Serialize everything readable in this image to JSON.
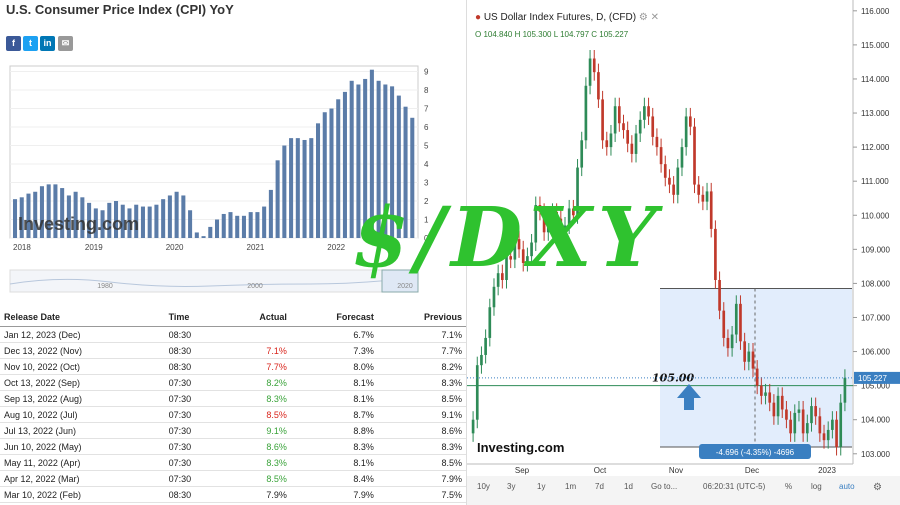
{
  "cpi": {
    "title": "U.S. Consumer Price Index (CPI) YoY",
    "share_icons": [
      "facebook-icon",
      "twitter-icon",
      "linkedin-icon",
      "email-icon"
    ],
    "logo": "Investing.com",
    "chart_data": {
      "type": "bar",
      "x_ticks": [
        "2018",
        "2019",
        "2020",
        "2021",
        "2022"
      ],
      "y_ticks": [
        "0",
        "1",
        "2",
        "3",
        "4",
        "5",
        "6",
        "7",
        "8",
        "9"
      ],
      "ylim": [
        0,
        9.3
      ],
      "values": [
        2.1,
        2.2,
        2.4,
        2.5,
        2.8,
        2.9,
        2.9,
        2.7,
        2.3,
        2.5,
        2.2,
        1.9,
        1.6,
        1.5,
        1.9,
        2.0,
        1.8,
        1.6,
        1.8,
        1.7,
        1.7,
        1.8,
        2.1,
        2.3,
        2.5,
        2.3,
        1.5,
        0.3,
        0.1,
        0.6,
        1.0,
        1.3,
        1.4,
        1.2,
        1.2,
        1.4,
        1.4,
        1.7,
        2.6,
        4.2,
        5.0,
        5.4,
        5.4,
        5.3,
        5.4,
        6.2,
        6.8,
        7.0,
        7.5,
        7.9,
        8.5,
        8.3,
        8.6,
        9.1,
        8.5,
        8.3,
        8.2,
        7.7,
        7.1,
        6.5
      ],
      "bar_color": "#5b7ca8",
      "navigator_labels": [
        "1980",
        "2000",
        "2020"
      ]
    }
  },
  "releases": {
    "headers": [
      "Release Date",
      "Time",
      "Actual",
      "Forecast",
      "Previous"
    ],
    "rows": [
      {
        "date": "Jan 12, 2023 (Dec)",
        "time": "08:30",
        "actual": "",
        "forecast": "6.7%",
        "previous": "7.1%",
        "color": ""
      },
      {
        "date": "Dec 13, 2022 (Nov)",
        "time": "08:30",
        "actual": "7.1%",
        "forecast": "7.3%",
        "previous": "7.7%",
        "color": "red"
      },
      {
        "date": "Nov 10, 2022 (Oct)",
        "time": "08:30",
        "actual": "7.7%",
        "forecast": "8.0%",
        "previous": "8.2%",
        "color": "red"
      },
      {
        "date": "Oct 13, 2022 (Sep)",
        "time": "07:30",
        "actual": "8.2%",
        "forecast": "8.1%",
        "previous": "8.3%",
        "color": "green"
      },
      {
        "date": "Sep 13, 2022 (Aug)",
        "time": "07:30",
        "actual": "8.3%",
        "forecast": "8.1%",
        "previous": "8.5%",
        "color": "green"
      },
      {
        "date": "Aug 10, 2022 (Jul)",
        "time": "07:30",
        "actual": "8.5%",
        "forecast": "8.7%",
        "previous": "9.1%",
        "color": "red"
      },
      {
        "date": "Jul 13, 2022 (Jun)",
        "time": "07:30",
        "actual": "9.1%",
        "forecast": "8.8%",
        "previous": "8.6%",
        "color": "green"
      },
      {
        "date": "Jun 10, 2022 (May)",
        "time": "07:30",
        "actual": "8.6%",
        "forecast": "8.3%",
        "previous": "8.3%",
        "color": "green"
      },
      {
        "date": "May 11, 2022 (Apr)",
        "time": "07:30",
        "actual": "8.3%",
        "forecast": "8.1%",
        "previous": "8.5%",
        "color": "green"
      },
      {
        "date": "Apr 12, 2022 (Mar)",
        "time": "07:30",
        "actual": "8.5%",
        "forecast": "8.4%",
        "previous": "7.9%",
        "color": "green"
      },
      {
        "date": "Mar 10, 2022 (Feb)",
        "time": "08:30",
        "actual": "7.9%",
        "forecast": "7.9%",
        "previous": "7.5%",
        "color": ""
      }
    ]
  },
  "dxy": {
    "title": "US Dollar Index Futures, D, (CFD)",
    "ohlc": "O 104.840  H 105.300  L 104.797  C 105.227",
    "logo": "Investing.com",
    "chart_data": {
      "type": "candlestick",
      "ylim": [
        102.7,
        116.2
      ],
      "y_ticks": [
        "103.000",
        "104.000",
        "105.000",
        "106.000",
        "107.000",
        "108.000",
        "109.000",
        "110.000",
        "111.000",
        "112.000",
        "113.000",
        "114.000",
        "115.000",
        "116.000"
      ],
      "x_ticks": [
        "Sep",
        "Oct",
        "Nov",
        "Dec",
        "2023"
      ],
      "last_price": "105.227",
      "level_label": "105.00",
      "level_value": 105.0,
      "range_top": 107.85,
      "range_bottom": 103.2,
      "range_label": "-4.696 (-4.35%) -4696",
      "up_color": "#2e8b57",
      "down_color": "#c0392b",
      "closes": [
        104.0,
        105.6,
        105.9,
        106.4,
        107.3,
        107.9,
        108.3,
        108.1,
        108.8,
        108.7,
        109.3,
        109.0,
        108.6,
        108.8,
        109.2,
        110.3,
        110.1,
        109.5,
        109.7,
        110.1,
        109.9,
        109.4,
        109.7,
        110.2,
        110.0,
        111.4,
        112.2,
        113.8,
        114.6,
        114.2,
        113.4,
        112.2,
        112.0,
        112.4,
        113.2,
        112.7,
        112.5,
        112.1,
        111.8,
        112.4,
        112.8,
        113.2,
        112.9,
        112.3,
        112.0,
        111.5,
        111.1,
        110.9,
        110.6,
        111.4,
        112.0,
        112.9,
        112.6,
        110.9,
        110.6,
        110.4,
        110.7,
        109.6,
        108.1,
        107.2,
        106.4,
        106.1,
        106.5,
        107.4,
        106.3,
        105.7,
        106.0,
        105.5,
        105.0,
        104.7,
        104.8,
        104.5,
        104.1,
        104.7,
        104.3,
        104.0,
        103.6,
        104.2,
        104.3,
        103.6,
        103.9,
        104.4,
        104.1,
        103.6,
        103.4,
        103.7,
        104.0,
        103.2,
        104.5,
        105.23
      ]
    },
    "toolbar_left": [
      "10y",
      "3y",
      "1y",
      "1m",
      "7d",
      "1d",
      "Go to..."
    ],
    "toolbar_right": [
      "06:20:31 (UTC-5)",
      "%",
      "log",
      "auto"
    ]
  },
  "overlay": {
    "text": "$/DXY",
    "color": "#2fc22f"
  }
}
